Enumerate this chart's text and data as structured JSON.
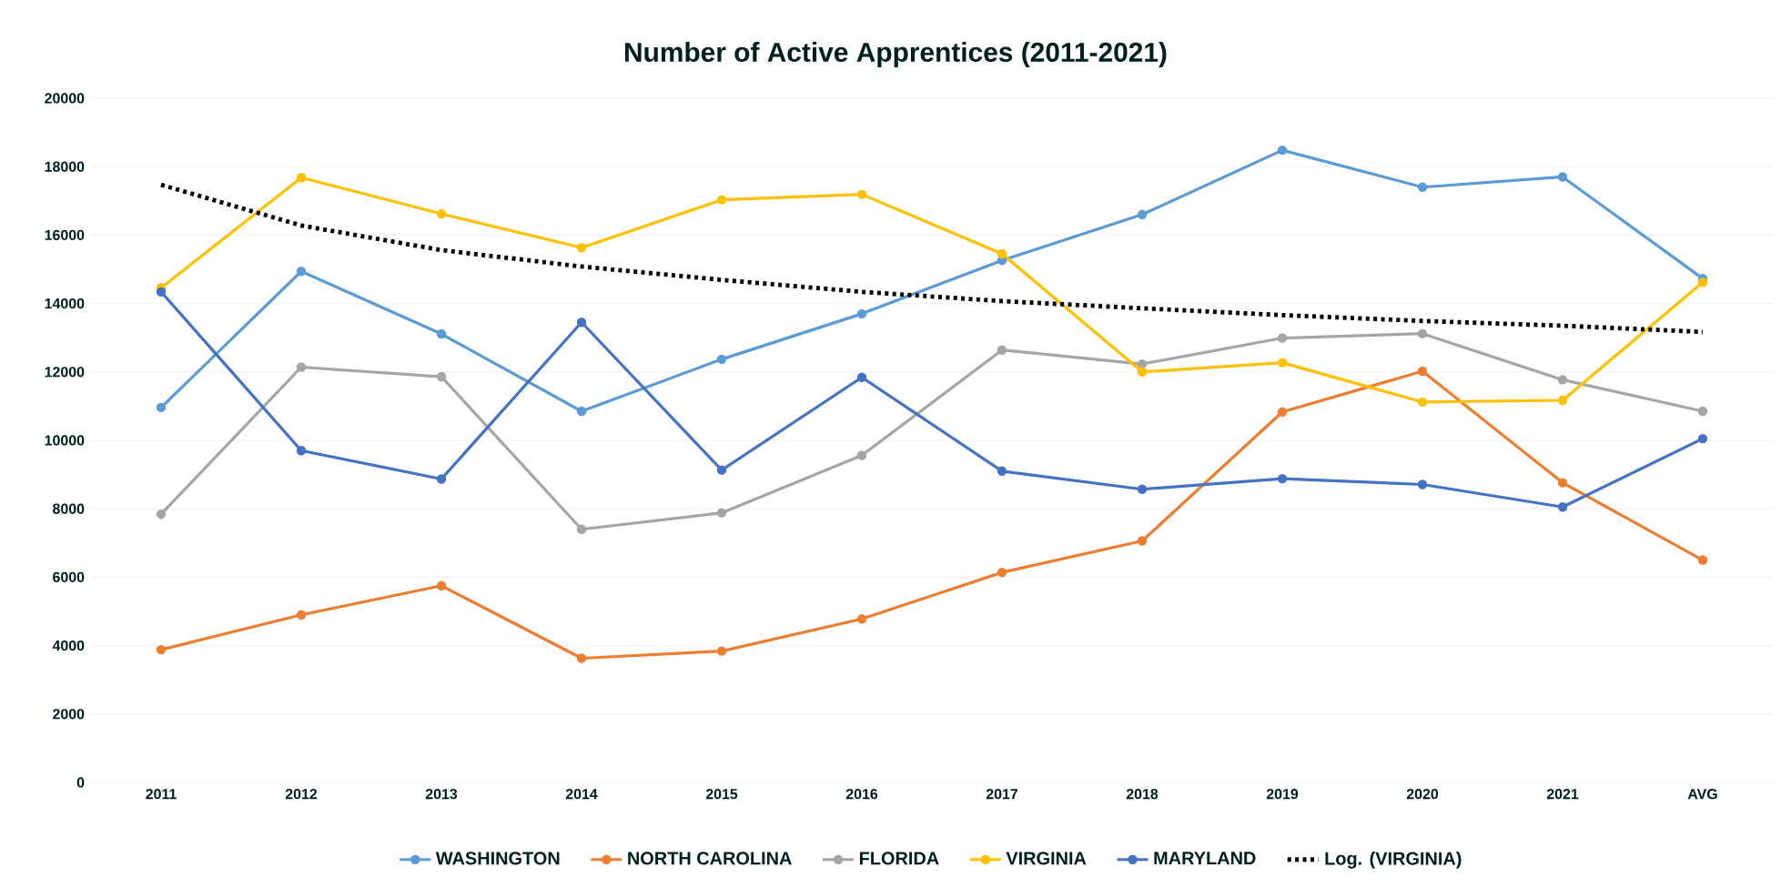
{
  "chart_data": {
    "type": "line",
    "title": "Number of Active Apprentices (2011-2021)",
    "categories": [
      "2011",
      "2012",
      "2013",
      "2014",
      "2015",
      "2016",
      "2017",
      "2018",
      "2019",
      "2020",
      "2021",
      "AVG"
    ],
    "series": [
      {
        "name": "WASHINGTON",
        "color": "#5b9bd5",
        "values": [
          10960,
          14940,
          13110,
          10850,
          12370,
          13700,
          15260,
          16600,
          18480,
          17400,
          17700,
          14730
        ]
      },
      {
        "name": "NORTH CAROLINA",
        "color": "#ed7d31",
        "values": [
          3880,
          4900,
          5750,
          3630,
          3840,
          4780,
          6140,
          7060,
          10830,
          12020,
          8760,
          6500
        ]
      },
      {
        "name": "FLORIDA",
        "color": "#a5a5a5",
        "values": [
          7840,
          12140,
          11860,
          7400,
          7880,
          9560,
          12640,
          12230,
          12990,
          13120,
          11770,
          10850
        ]
      },
      {
        "name": "VIRGINIA",
        "color": "#ffc000",
        "values": [
          14460,
          17680,
          16620,
          15630,
          17030,
          17190,
          15450,
          12000,
          12270,
          11120,
          11170,
          14620
        ]
      },
      {
        "name": "MARYLAND",
        "color": "#4472c4",
        "values": [
          14340,
          9700,
          8870,
          13450,
          9130,
          11840,
          9100,
          8570,
          8880,
          8710,
          8050,
          10050
        ]
      },
      {
        "name": "Log. (VIRGINIA)",
        "color": "#000000",
        "marker": "none",
        "line_style": "dotted",
        "values": [
          17470,
          16280,
          15560,
          15080,
          14690,
          14340,
          14070,
          13860,
          13660,
          13490,
          13350,
          13170
        ]
      }
    ],
    "ylim": [
      0,
      20000
    ],
    "yticks": [
      0,
      2000,
      4000,
      6000,
      8000,
      10000,
      12000,
      14000,
      16000,
      18000,
      20000
    ],
    "grid": "y",
    "legend": "bottom",
    "marker": "circle"
  }
}
